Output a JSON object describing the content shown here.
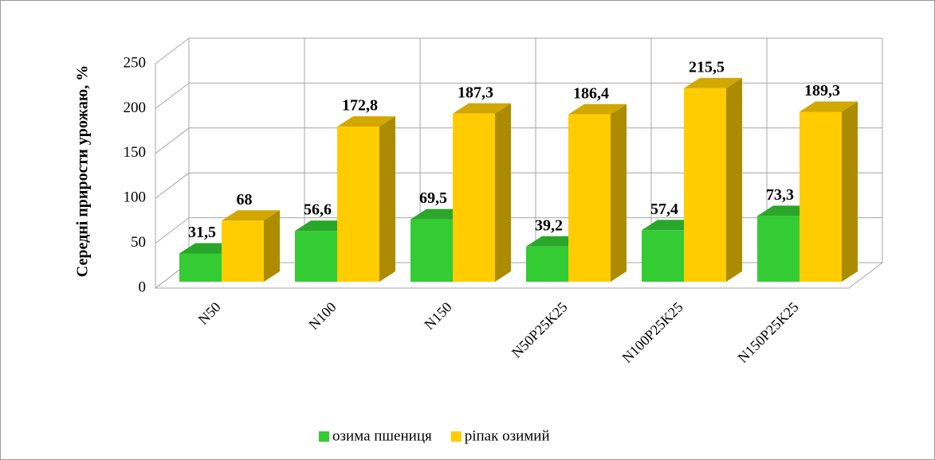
{
  "chart_data": {
    "type": "bar",
    "ylabel": "Середні прирости урожаю, %",
    "categories": [
      "N50",
      "N100",
      "N150",
      "N50P25K25",
      "N100P25K25",
      "N150P25K25"
    ],
    "series": [
      {
        "name": "озима пшениця",
        "color": "#33cc33",
        "values": [
          31.5,
          56.6,
          69.5,
          39.2,
          57.4,
          73.3
        ],
        "value_labels": [
          "31,5",
          "56,6",
          "69,5",
          "39,2",
          "57,4",
          "73,3"
        ]
      },
      {
        "name": "ріпак озимий",
        "color": "#ffcc00",
        "values": [
          68,
          172.8,
          187.3,
          186.4,
          215.5,
          189.3
        ],
        "value_labels": [
          "68",
          "172,8",
          "187,3",
          "186,4",
          "215,5",
          "189,3"
        ]
      }
    ],
    "ylim": [
      0,
      250
    ],
    "yticks": [
      0,
      50,
      100,
      150,
      200,
      250
    ],
    "grid": true,
    "legend": "bottom"
  }
}
